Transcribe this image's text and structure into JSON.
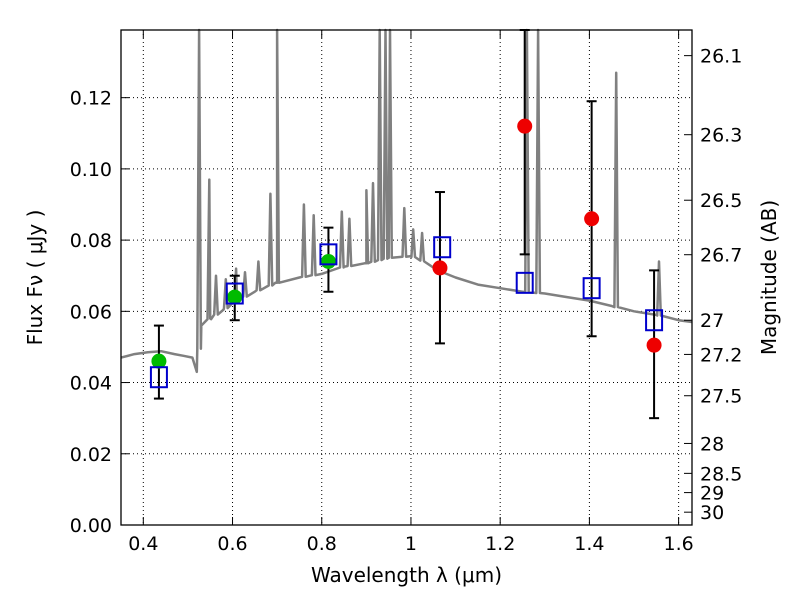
{
  "chart_data": {
    "type": "scatter",
    "xlabel": "Wavelength  λ (μm)",
    "ylabel": "Flux  Fν  ( μJy )",
    "y2label": "Magnitude (AB)",
    "xlim": [
      0.35,
      1.63
    ],
    "ylim": [
      0.0,
      0.139
    ],
    "grid": true,
    "x_ticks": [
      0.4,
      0.6,
      0.8,
      1.0,
      1.2,
      1.4,
      1.6
    ],
    "x_tick_labels": [
      "0.4",
      "0.6",
      "0.8",
      "1",
      "1.2",
      "1.4",
      "1.6"
    ],
    "y_ticks": [
      0.0,
      0.02,
      0.04,
      0.06,
      0.08,
      0.1,
      0.12
    ],
    "y_tick_labels": [
      "0.00",
      "0.02",
      "0.04",
      "0.06",
      "0.08",
      "0.10",
      "0.12"
    ],
    "mag_ticks": [
      {
        "flux": 0.1318,
        "label": "26.1"
      },
      {
        "flux": 0.1096,
        "label": "26.3"
      },
      {
        "flux": 0.0912,
        "label": "26.5"
      },
      {
        "flux": 0.0759,
        "label": "26.7"
      },
      {
        "flux": 0.0575,
        "label": "27"
      },
      {
        "flux": 0.0479,
        "label": "27.2"
      },
      {
        "flux": 0.0363,
        "label": "27.5"
      },
      {
        "flux": 0.0229,
        "label": "28"
      },
      {
        "flux": 0.0145,
        "label": "28.5"
      },
      {
        "flux": 0.0091,
        "label": "29"
      },
      {
        "flux": 0.0036,
        "label": "30"
      }
    ],
    "colors": {
      "sed": "#808080",
      "detection": "#00bb00",
      "upper": "#ee0000",
      "model": "#0000cc",
      "errorbar": "#000000",
      "grid": "#000000"
    },
    "series": [
      {
        "name": "green points",
        "marker": "circle",
        "x": [
          0.435,
          0.605,
          0.815
        ],
        "y": [
          0.046,
          0.064,
          0.074
        ],
        "err_low": [
          0.0355,
          0.0575,
          0.0655
        ],
        "err_high": [
          0.056,
          0.07,
          0.0835
        ]
      },
      {
        "name": "red points",
        "marker": "circle",
        "x": [
          1.065,
          1.255,
          1.405,
          1.545
        ],
        "y": [
          0.0722,
          0.112,
          0.086,
          0.0505
        ],
        "err_low": [
          0.051,
          0.076,
          0.053,
          0.03
        ],
        "err_high": [
          0.0935,
          0.139,
          0.119,
          0.0715
        ]
      },
      {
        "name": "model photometry",
        "marker": "open-square",
        "x": [
          0.435,
          0.605,
          0.815,
          1.07,
          1.255,
          1.405,
          1.545
        ],
        "y": [
          0.0415,
          0.065,
          0.076,
          0.078,
          0.068,
          0.0665,
          0.0575
        ]
      }
    ],
    "sed_continuum": [
      [
        0.35,
        0.047
      ],
      [
        0.38,
        0.048
      ],
      [
        0.41,
        0.0485
      ],
      [
        0.44,
        0.0488
      ],
      [
        0.47,
        0.048
      ],
      [
        0.49,
        0.0475
      ],
      [
        0.51,
        0.047
      ],
      [
        0.52,
        0.043
      ],
      [
        0.53,
        0.056
      ],
      [
        0.55,
        0.058
      ],
      [
        0.58,
        0.0605
      ],
      [
        0.61,
        0.063
      ],
      [
        0.65,
        0.0655
      ],
      [
        0.7,
        0.068
      ],
      [
        0.75,
        0.0695
      ],
      [
        0.8,
        0.0705
      ],
      [
        0.85,
        0.0725
      ],
      [
        0.9,
        0.0735
      ],
      [
        0.95,
        0.075
      ],
      [
        1.0,
        0.0755
      ],
      [
        1.03,
        0.074
      ],
      [
        1.06,
        0.0715
      ],
      [
        1.1,
        0.0695
      ],
      [
        1.15,
        0.0675
      ],
      [
        1.2,
        0.0665
      ],
      [
        1.25,
        0.0655
      ],
      [
        1.3,
        0.065
      ],
      [
        1.35,
        0.064
      ],
      [
        1.4,
        0.063
      ],
      [
        1.45,
        0.0615
      ],
      [
        1.5,
        0.06
      ],
      [
        1.55,
        0.059
      ],
      [
        1.6,
        0.0575
      ],
      [
        1.63,
        0.057
      ]
    ],
    "sed_lines": [
      [
        0.525,
        0.139
      ],
      [
        0.548,
        0.097
      ],
      [
        0.563,
        0.07
      ],
      [
        0.585,
        0.069
      ],
      [
        0.608,
        0.072
      ],
      [
        0.628,
        0.071
      ],
      [
        0.658,
        0.074
      ],
      [
        0.685,
        0.093
      ],
      [
        0.7,
        0.139
      ],
      [
        0.76,
        0.09
      ],
      [
        0.782,
        0.087
      ],
      [
        0.845,
        0.088
      ],
      [
        0.862,
        0.086
      ],
      [
        0.9,
        0.094
      ],
      [
        0.915,
        0.096
      ],
      [
        0.93,
        0.139
      ],
      [
        0.943,
        0.139
      ],
      [
        0.953,
        0.139
      ],
      [
        0.985,
        0.089
      ],
      [
        1.005,
        0.083
      ],
      [
        1.025,
        0.082
      ],
      [
        1.26,
        0.139
      ],
      [
        1.285,
        0.139
      ],
      [
        1.46,
        0.127
      ],
      [
        1.556,
        0.074
      ]
    ]
  }
}
